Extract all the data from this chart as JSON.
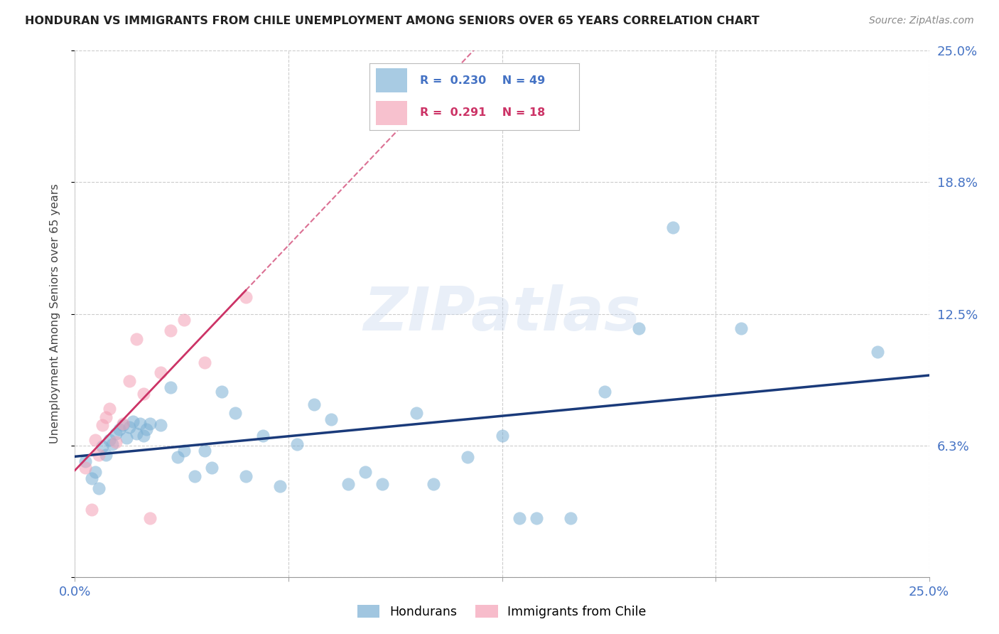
{
  "title": "HONDURAN VS IMMIGRANTS FROM CHILE UNEMPLOYMENT AMONG SENIORS OVER 65 YEARS CORRELATION CHART",
  "source": "Source: ZipAtlas.com",
  "ylabel": "Unemployment Among Seniors over 65 years",
  "xlim": [
    0.0,
    0.25
  ],
  "ylim": [
    0.0,
    0.25
  ],
  "ytick_vals": [
    0.0,
    0.0625,
    0.125,
    0.1875,
    0.25
  ],
  "ytick_labels_right": [
    "",
    "6.3%",
    "12.5%",
    "18.8%",
    "25.0%"
  ],
  "xtick_vals": [
    0.0,
    0.0625,
    0.125,
    0.1875,
    0.25
  ],
  "xtick_labels": [
    "0.0%",
    "",
    "",
    "",
    "25.0%"
  ],
  "legend1_R": "0.230",
  "legend1_N": "49",
  "legend2_R": "0.291",
  "legend2_N": "18",
  "hondurans_color": "#7aafd4",
  "chile_color": "#f4a0b5",
  "trendline_hondurans_color": "#1a3a7a",
  "trendline_chile_color": "#cc3366",
  "watermark_text": "ZIPatlas",
  "hondurans_x": [
    0.003,
    0.005,
    0.006,
    0.007,
    0.008,
    0.009,
    0.01,
    0.011,
    0.012,
    0.013,
    0.014,
    0.015,
    0.016,
    0.017,
    0.018,
    0.019,
    0.02,
    0.021,
    0.022,
    0.025,
    0.028,
    0.03,
    0.032,
    0.035,
    0.038,
    0.04,
    0.043,
    0.047,
    0.05,
    0.055,
    0.06,
    0.065,
    0.07,
    0.075,
    0.08,
    0.085,
    0.09,
    0.1,
    0.105,
    0.115,
    0.125,
    0.13,
    0.135,
    0.145,
    0.155,
    0.165,
    0.175,
    0.195,
    0.235
  ],
  "hondurans_y": [
    0.055,
    0.047,
    0.05,
    0.042,
    0.062,
    0.058,
    0.065,
    0.063,
    0.068,
    0.07,
    0.072,
    0.066,
    0.071,
    0.074,
    0.068,
    0.073,
    0.067,
    0.07,
    0.073,
    0.072,
    0.09,
    0.057,
    0.06,
    0.048,
    0.06,
    0.052,
    0.088,
    0.078,
    0.048,
    0.067,
    0.043,
    0.063,
    0.082,
    0.075,
    0.044,
    0.05,
    0.044,
    0.078,
    0.044,
    0.057,
    0.067,
    0.028,
    0.028,
    0.028,
    0.088,
    0.118,
    0.166,
    0.118,
    0.107
  ],
  "chile_x": [
    0.003,
    0.005,
    0.006,
    0.007,
    0.008,
    0.009,
    0.01,
    0.012,
    0.014,
    0.016,
    0.018,
    0.02,
    0.022,
    0.025,
    0.028,
    0.032,
    0.038,
    0.05
  ],
  "chile_y": [
    0.052,
    0.032,
    0.065,
    0.058,
    0.072,
    0.076,
    0.08,
    0.064,
    0.073,
    0.093,
    0.113,
    0.087,
    0.028,
    0.097,
    0.117,
    0.122,
    0.102,
    0.133
  ]
}
